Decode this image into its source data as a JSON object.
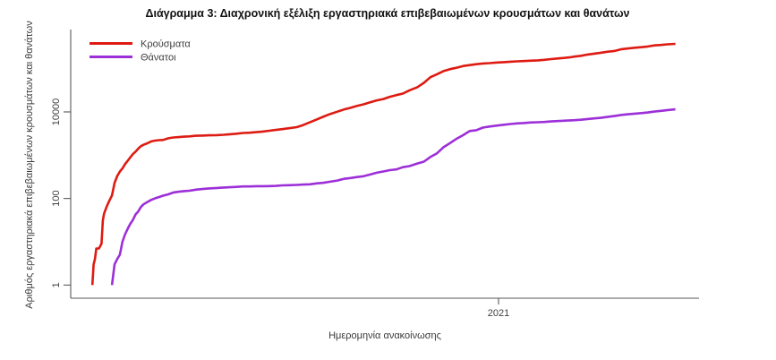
{
  "chart_data": {
    "type": "line",
    "title": "Διάγραμμα 3: Διαχρονική εξέλιξη εργαστηριακά επιβεβαιωμένων κρουσμάτων και θανάτων",
    "xlabel": "Ημερομηνία ανακοίνωσης",
    "ylabel": "Αριθμός εργαστηριακά επιβεβαιωμένων κρουσμάτων και θανάτων",
    "y_scale": "log10",
    "ylim": [
      1,
      800000
    ],
    "y_ticks": [
      1,
      100,
      10000
    ],
    "y_tick_labels": [
      "1",
      "100",
      "10000"
    ],
    "x_ticks": [
      "2021-01-01"
    ],
    "x_tick_labels": [
      "2021"
    ],
    "x_range": [
      "2020-02-10",
      "2021-06-03"
    ],
    "grid": false,
    "legend_position": "top-left",
    "legend": [
      {
        "name": "Κρούσματα",
        "color": "#de1b12"
      },
      {
        "name": "Θάνατοι",
        "color": "#9d2fd8"
      }
    ],
    "colors": {
      "cases": "#de1b12",
      "deaths": "#9d2fd8",
      "axis": "#595959",
      "tick_text": "#404040",
      "title_text": "#111111"
    },
    "series": [
      {
        "name": "Κρούσματα",
        "color": "#de1b12",
        "points": [
          [
            "2020-02-26",
            1
          ],
          [
            "2020-02-27",
            3
          ],
          [
            "2020-02-28",
            4
          ],
          [
            "2020-02-29",
            7
          ],
          [
            "2020-03-02",
            7
          ],
          [
            "2020-03-04",
            9
          ],
          [
            "2020-03-05",
            31
          ],
          [
            "2020-03-06",
            45
          ],
          [
            "2020-03-08",
            66
          ],
          [
            "2020-03-10",
            89
          ],
          [
            "2020-03-12",
            117
          ],
          [
            "2020-03-14",
            228
          ],
          [
            "2020-03-16",
            331
          ],
          [
            "2020-03-18",
            418
          ],
          [
            "2020-03-20",
            495
          ],
          [
            "2020-03-22",
            624
          ],
          [
            "2020-03-24",
            743
          ],
          [
            "2020-03-26",
            892
          ],
          [
            "2020-03-28",
            1061
          ],
          [
            "2020-03-30",
            1212
          ],
          [
            "2020-04-01",
            1415
          ],
          [
            "2020-04-03",
            1613
          ],
          [
            "2020-04-05",
            1735
          ],
          [
            "2020-04-08",
            1884
          ],
          [
            "2020-04-11",
            2081
          ],
          [
            "2020-04-14",
            2170
          ],
          [
            "2020-04-17",
            2224
          ],
          [
            "2020-04-20",
            2245
          ],
          [
            "2020-04-24",
            2463
          ],
          [
            "2020-04-28",
            2566
          ],
          [
            "2020-05-02",
            2620
          ],
          [
            "2020-05-06",
            2678
          ],
          [
            "2020-05-10",
            2716
          ],
          [
            "2020-05-15",
            2810
          ],
          [
            "2020-05-20",
            2840
          ],
          [
            "2020-05-25",
            2878
          ],
          [
            "2020-05-31",
            2915
          ],
          [
            "2020-06-05",
            2965
          ],
          [
            "2020-06-10",
            3049
          ],
          [
            "2020-06-15",
            3134
          ],
          [
            "2020-06-20",
            3256
          ],
          [
            "2020-06-25",
            3310
          ],
          [
            "2020-06-30",
            3409
          ],
          [
            "2020-07-05",
            3519
          ],
          [
            "2020-07-10",
            3672
          ],
          [
            "2020-07-15",
            3826
          ],
          [
            "2020-07-20",
            4007
          ],
          [
            "2020-07-25",
            4193
          ],
          [
            "2020-07-31",
            4447
          ],
          [
            "2020-08-05",
            4974
          ],
          [
            "2020-08-10",
            5749
          ],
          [
            "2020-08-15",
            6632
          ],
          [
            "2020-08-20",
            7684
          ],
          [
            "2020-08-25",
            8819
          ],
          [
            "2020-08-31",
            10134
          ],
          [
            "2020-09-05",
            11386
          ],
          [
            "2020-09-10",
            12452
          ],
          [
            "2020-09-15",
            13730
          ],
          [
            "2020-09-20",
            14978
          ],
          [
            "2020-09-25",
            16627
          ],
          [
            "2020-09-30",
            18475
          ],
          [
            "2020-10-05",
            19842
          ],
          [
            "2020-10-10",
            22358
          ],
          [
            "2020-10-15",
            24450
          ],
          [
            "2020-10-20",
            26469
          ],
          [
            "2020-10-25",
            31496
          ],
          [
            "2020-10-31",
            37196
          ],
          [
            "2020-11-05",
            46892
          ],
          [
            "2020-11-10",
            63321
          ],
          [
            "2020-11-15",
            74205
          ],
          [
            "2020-11-20",
            87812
          ],
          [
            "2020-11-25",
            97288
          ],
          [
            "2020-11-30",
            105271
          ],
          [
            "2020-12-05",
            115143
          ],
          [
            "2020-12-10",
            120926
          ],
          [
            "2020-12-15",
            126372
          ],
          [
            "2020-12-20",
            131296
          ],
          [
            "2020-12-25",
            134336
          ],
          [
            "2020-12-31",
            138850
          ],
          [
            "2021-01-05",
            141453
          ],
          [
            "2021-01-10",
            144738
          ],
          [
            "2021-01-15",
            147283
          ],
          [
            "2021-01-20",
            149637
          ],
          [
            "2021-01-25",
            152225
          ],
          [
            "2021-01-31",
            155678
          ],
          [
            "2021-02-05",
            159866
          ],
          [
            "2021-02-10",
            166067
          ],
          [
            "2021-02-15",
            171542
          ],
          [
            "2021-02-20",
            177030
          ],
          [
            "2021-02-25",
            183491
          ],
          [
            "2021-02-28",
            190235
          ],
          [
            "2021-03-05",
            198278
          ],
          [
            "2021-03-10",
            211399
          ],
          [
            "2021-03-15",
            222613
          ],
          [
            "2021-03-20",
            233288
          ],
          [
            "2021-03-25",
            245405
          ],
          [
            "2021-03-31",
            257418
          ],
          [
            "2021-04-05",
            281570
          ],
          [
            "2021-04-10",
            292666
          ],
          [
            "2021-04-15",
            304184
          ],
          [
            "2021-04-20",
            313444
          ],
          [
            "2021-04-25",
            325919
          ],
          [
            "2021-04-30",
            344456
          ],
          [
            "2021-05-05",
            353392
          ],
          [
            "2021-05-10",
            364160
          ],
          [
            "2021-05-16",
            373881
          ]
        ]
      },
      {
        "name": "Θάνατοι",
        "color": "#9d2fd8",
        "points": [
          [
            "2020-03-12",
            1
          ],
          [
            "2020-03-14",
            3
          ],
          [
            "2020-03-16",
            4
          ],
          [
            "2020-03-18",
            5
          ],
          [
            "2020-03-20",
            10
          ],
          [
            "2020-03-22",
            15
          ],
          [
            "2020-03-24",
            20
          ],
          [
            "2020-03-26",
            26
          ],
          [
            "2020-03-28",
            32
          ],
          [
            "2020-03-30",
            43
          ],
          [
            "2020-04-01",
            50
          ],
          [
            "2020-04-03",
            63
          ],
          [
            "2020-04-05",
            73
          ],
          [
            "2020-04-08",
            83
          ],
          [
            "2020-04-11",
            93
          ],
          [
            "2020-04-14",
            101
          ],
          [
            "2020-04-17",
            108
          ],
          [
            "2020-04-20",
            116
          ],
          [
            "2020-04-24",
            125
          ],
          [
            "2020-04-28",
            138
          ],
          [
            "2020-05-02",
            143
          ],
          [
            "2020-05-06",
            148
          ],
          [
            "2020-05-10",
            151
          ],
          [
            "2020-05-15",
            160
          ],
          [
            "2020-05-20",
            165
          ],
          [
            "2020-05-25",
            171
          ],
          [
            "2020-05-31",
            175
          ],
          [
            "2020-06-05",
            179
          ],
          [
            "2020-06-10",
            182
          ],
          [
            "2020-06-15",
            185
          ],
          [
            "2020-06-20",
            190
          ],
          [
            "2020-06-25",
            190
          ],
          [
            "2020-06-30",
            192
          ],
          [
            "2020-07-05",
            192
          ],
          [
            "2020-07-10",
            193
          ],
          [
            "2020-07-15",
            195
          ],
          [
            "2020-07-20",
            201
          ],
          [
            "2020-07-25",
            203
          ],
          [
            "2020-07-31",
            206
          ],
          [
            "2020-08-05",
            210
          ],
          [
            "2020-08-10",
            213
          ],
          [
            "2020-08-15",
            223
          ],
          [
            "2020-08-20",
            230
          ],
          [
            "2020-08-25",
            243
          ],
          [
            "2020-08-31",
            260
          ],
          [
            "2020-09-05",
            284
          ],
          [
            "2020-09-10",
            297
          ],
          [
            "2020-09-15",
            313
          ],
          [
            "2020-09-20",
            327
          ],
          [
            "2020-09-25",
            357
          ],
          [
            "2020-09-30",
            393
          ],
          [
            "2020-10-05",
            420
          ],
          [
            "2020-10-10",
            452
          ],
          [
            "2020-10-15",
            469
          ],
          [
            "2020-10-20",
            528
          ],
          [
            "2020-10-25",
            559
          ],
          [
            "2020-10-31",
            642
          ],
          [
            "2020-11-05",
            709
          ],
          [
            "2020-11-10",
            909
          ],
          [
            "2020-11-15",
            1106
          ],
          [
            "2020-11-20",
            1527
          ],
          [
            "2020-11-25",
            1902
          ],
          [
            "2020-11-30",
            2406
          ],
          [
            "2020-12-05",
            2902
          ],
          [
            "2020-12-10",
            3625
          ],
          [
            "2020-12-15",
            3785
          ],
          [
            "2020-12-20",
            4340
          ],
          [
            "2020-12-25",
            4606
          ],
          [
            "2020-12-31",
            4838
          ],
          [
            "2021-01-05",
            5051
          ],
          [
            "2021-01-10",
            5263
          ],
          [
            "2021-01-15",
            5421
          ],
          [
            "2021-01-20",
            5546
          ],
          [
            "2021-01-25",
            5685
          ],
          [
            "2021-01-31",
            5764
          ],
          [
            "2021-02-05",
            5851
          ],
          [
            "2021-02-10",
            6017
          ],
          [
            "2021-02-15",
            6152
          ],
          [
            "2021-02-20",
            6271
          ],
          [
            "2021-02-25",
            6371
          ],
          [
            "2021-02-28",
            6439
          ],
          [
            "2021-03-05",
            6597
          ],
          [
            "2021-03-10",
            6843
          ],
          [
            "2021-03-15",
            7091
          ],
          [
            "2021-03-20",
            7297
          ],
          [
            "2021-03-25",
            7649
          ],
          [
            "2021-03-31",
            8093
          ],
          [
            "2021-04-05",
            8532
          ],
          [
            "2021-04-10",
            8833
          ],
          [
            "2021-04-15",
            9135
          ],
          [
            "2021-04-20",
            9397
          ],
          [
            "2021-04-25",
            9713
          ],
          [
            "2021-04-30",
            10179
          ],
          [
            "2021-05-05",
            10587
          ],
          [
            "2021-05-10",
            11029
          ],
          [
            "2021-05-16",
            11471
          ]
        ]
      }
    ]
  }
}
